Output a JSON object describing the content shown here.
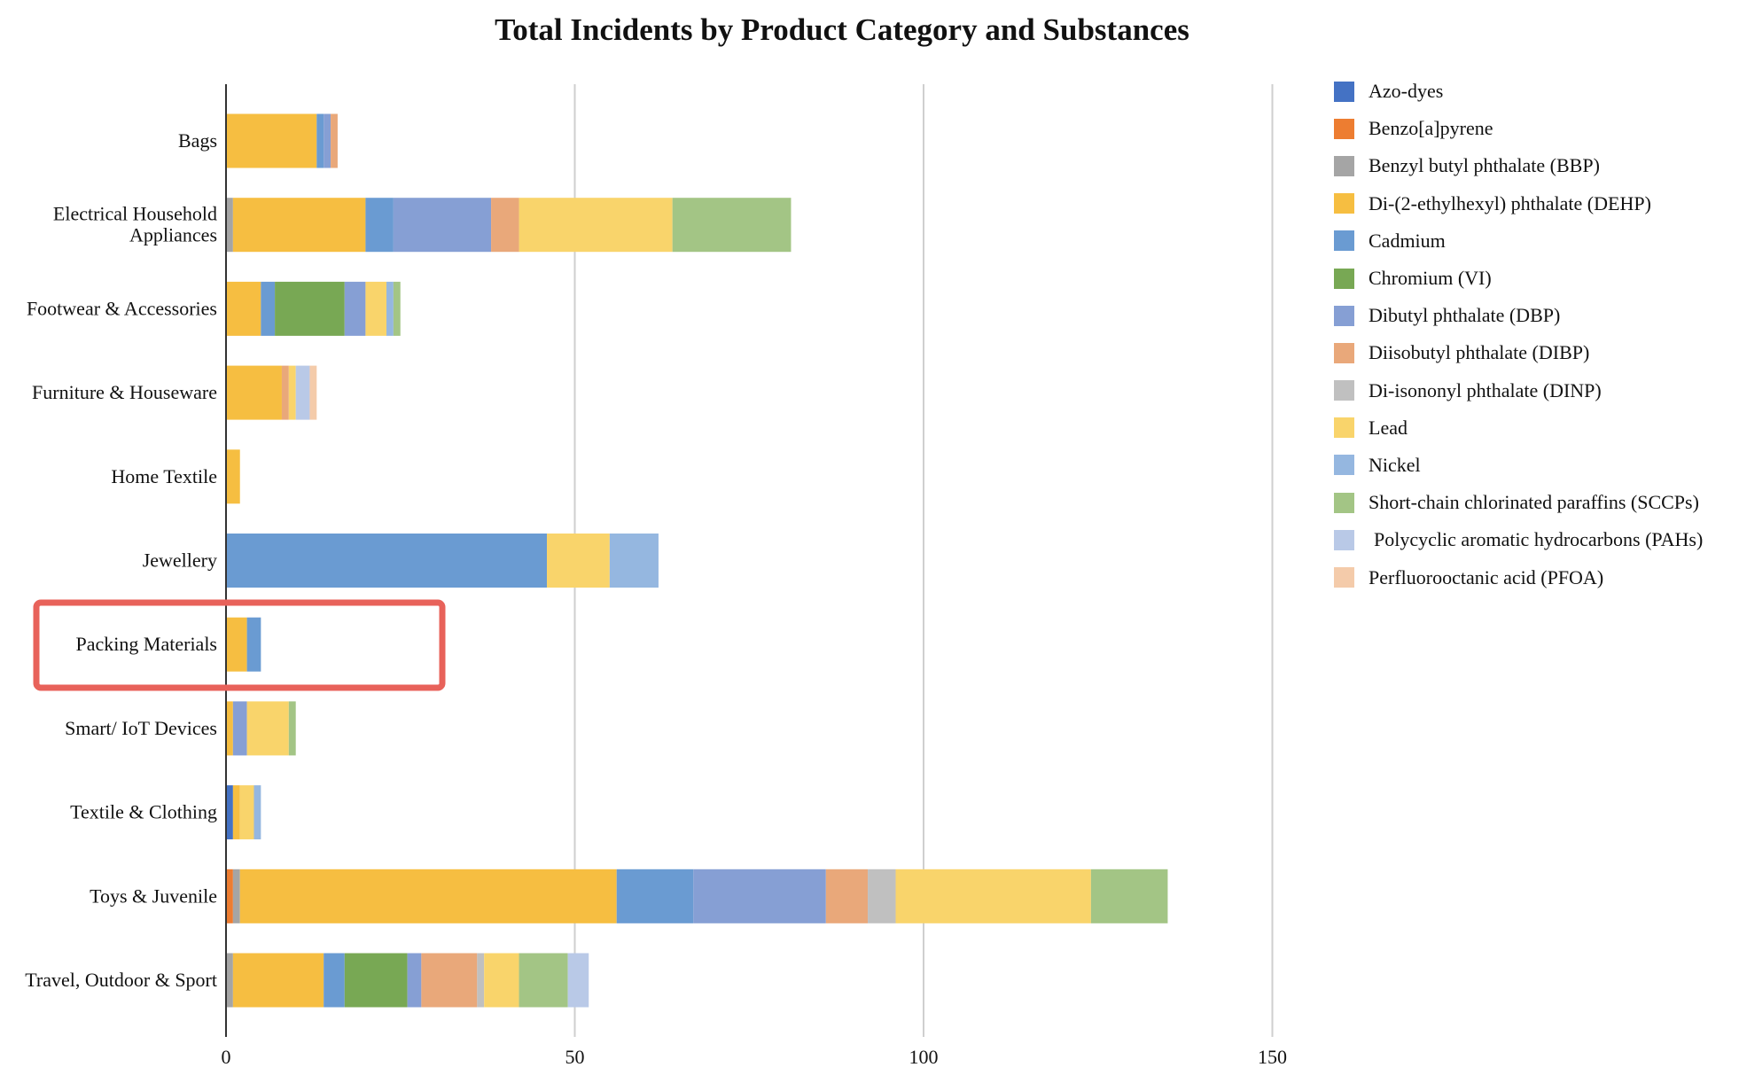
{
  "chart_data": {
    "type": "bar",
    "orientation": "horizontal",
    "stacked": true,
    "title": "Total Incidents by Product Category and Substances",
    "xlabel": "",
    "ylabel": "",
    "xlim": [
      0,
      150
    ],
    "xticks": [
      0,
      50,
      100,
      150
    ],
    "grid": true,
    "legend_position": "right",
    "categories": [
      "Bags",
      "Electrical Household Appliances",
      "Footwear & Accessories",
      "Furniture & Houseware",
      "Home Textile",
      "Jewellery",
      "Packing Materials",
      "Smart/ IoT Devices",
      "Textile & Clothing",
      "Toys & Juvenile",
      "Travel, Outdoor & Sport"
    ],
    "category_label_lines": [
      [
        "Bags"
      ],
      [
        "Electrical Household",
        "Appliances"
      ],
      [
        "Footwear & Accessories"
      ],
      [
        "Furniture & Houseware"
      ],
      [
        "Home Textile"
      ],
      [
        "Jewellery"
      ],
      [
        "Packing Materials"
      ],
      [
        "Smart/ IoT Devices"
      ],
      [
        "Textile & Clothing"
      ],
      [
        "Toys & Juvenile"
      ],
      [
        "Travel, Outdoor & Sport"
      ]
    ],
    "series": [
      {
        "name": "Azo-dyes",
        "color": "#4472C4",
        "values": [
          0,
          0,
          0,
          0,
          0,
          0,
          0,
          0,
          1,
          0,
          0
        ]
      },
      {
        "name": "Benzo[a]pyrene",
        "color": "#ED7D31",
        "values": [
          0,
          0,
          0,
          0,
          0,
          0,
          0,
          0,
          0,
          1,
          0
        ]
      },
      {
        "name": "Benzyl butyl phthalate (BBP)",
        "color": "#A5A5A5",
        "values": [
          0,
          1,
          0,
          0,
          0,
          0,
          0,
          0,
          0,
          1,
          1
        ]
      },
      {
        "name": "Di-(2-ethylhexyl) phthalate (DEHP)",
        "color": "#F6BE41",
        "values": [
          13,
          19,
          5,
          8,
          2,
          0,
          3,
          1,
          1,
          54,
          13
        ]
      },
      {
        "name": "Cadmium",
        "color": "#6A9BD2",
        "values": [
          1,
          4,
          2,
          0,
          0,
          46,
          2,
          0,
          0,
          11,
          3
        ]
      },
      {
        "name": "Chromium (VI)",
        "color": "#78A854",
        "values": [
          0,
          0,
          10,
          0,
          0,
          0,
          0,
          0,
          0,
          0,
          9
        ]
      },
      {
        "name": "Dibutyl phthalate (DBP)",
        "color": "#869FD4",
        "values": [
          1,
          14,
          3,
          0,
          0,
          0,
          0,
          2,
          0,
          19,
          2
        ]
      },
      {
        "name": "Diisobutyl phthalate (DIBP)",
        "color": "#E9A87A",
        "values": [
          1,
          4,
          0,
          1,
          0,
          0,
          0,
          0,
          0,
          6,
          8
        ]
      },
      {
        "name": "Di-isononyl phthalate (DINP)",
        "color": "#C0C0C0",
        "values": [
          0,
          0,
          0,
          0,
          0,
          0,
          0,
          0,
          0,
          4,
          1
        ]
      },
      {
        "name": "Lead",
        "color": "#F9D46B",
        "values": [
          0,
          22,
          3,
          1,
          0,
          9,
          0,
          6,
          2,
          28,
          5
        ]
      },
      {
        "name": "Nickel",
        "color": "#95B7E0",
        "values": [
          0,
          0,
          1,
          0,
          0,
          7,
          0,
          0,
          1,
          0,
          0
        ]
      },
      {
        "name": "Short-chain chlorinated paraffins (SCCPs)",
        "color": "#A3C585",
        "values": [
          0,
          17,
          1,
          0,
          0,
          0,
          0,
          1,
          0,
          11,
          7
        ]
      },
      {
        "name": " Polycyclic aromatic hydrocarbons (PAHs)",
        "color": "#B9C9E7",
        "values": [
          0,
          0,
          0,
          2,
          0,
          0,
          0,
          0,
          0,
          0,
          3
        ]
      },
      {
        "name": "Perfluorooctanic acid (PFOA)",
        "color": "#F4CBAA",
        "values": [
          0,
          0,
          0,
          1,
          0,
          0,
          0,
          0,
          0,
          0,
          0
        ]
      }
    ],
    "highlight": {
      "category": "Packing Materials",
      "color": "#E8625A"
    }
  }
}
